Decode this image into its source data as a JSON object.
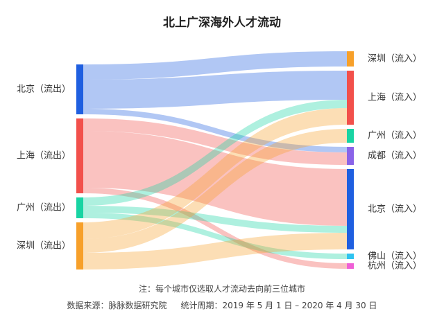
{
  "chart_data": {
    "type": "sankey",
    "title": "北上广深海外人才流动",
    "sources": [
      {
        "id": "bj_out",
        "label": "北京（流出）",
        "color": "#1f5fe0"
      },
      {
        "id": "sh_out",
        "label": "上海（流出）",
        "color": "#f2504b"
      },
      {
        "id": "gz_out",
        "label": "广州（流出）",
        "color": "#18d4a3"
      },
      {
        "id": "sz_out",
        "label": "深圳（流出）",
        "color": "#f7a02a"
      }
    ],
    "targets": [
      {
        "id": "sz_in",
        "label": "深圳（流入）",
        "color": "#f7a02a"
      },
      {
        "id": "sh_in",
        "label": "上海（流入）",
        "color": "#f2504b"
      },
      {
        "id": "gz_in",
        "label": "广州（流入）",
        "color": "#18d4a3"
      },
      {
        "id": "cd_in",
        "label": "成都（流入）",
        "color": "#8a63e8"
      },
      {
        "id": "bj_in",
        "label": "北京（流入）",
        "color": "#1f5fe0"
      },
      {
        "id": "fs_in",
        "label": "佛山（流入）",
        "color": "#2ec3f0"
      },
      {
        "id": "hz_in",
        "label": "杭州（流入）",
        "color": "#ef5fd6"
      }
    ],
    "links": [
      {
        "source": "bj_out",
        "target": "sz_in",
        "value": 22
      },
      {
        "source": "bj_out",
        "target": "sh_in",
        "value": 42
      },
      {
        "source": "bj_out",
        "target": "cd_in",
        "value": 8
      },
      {
        "source": "sh_out",
        "target": "bj_in",
        "value": 82
      },
      {
        "source": "sh_out",
        "target": "cd_in",
        "value": 18
      },
      {
        "source": "sh_out",
        "target": "hz_in",
        "value": 8
      },
      {
        "source": "gz_out",
        "target": "sh_in",
        "value": 12
      },
      {
        "source": "gz_out",
        "target": "bj_in",
        "value": 10
      },
      {
        "source": "gz_out",
        "target": "fs_in",
        "value": 8
      },
      {
        "source": "sz_out",
        "target": "sh_in",
        "value": 24
      },
      {
        "source": "sz_out",
        "target": "gz_in",
        "value": 20
      },
      {
        "source": "sz_out",
        "target": "bj_in",
        "value": 24
      }
    ]
  },
  "footer": {
    "note": "注：每个城市仅选取人才流动去向前三位城市",
    "source": "数据来源：脉脉数据研究院",
    "period": "统计周期：2019 年 5 月 1 日 – 2020 年 4 月 30 日"
  }
}
